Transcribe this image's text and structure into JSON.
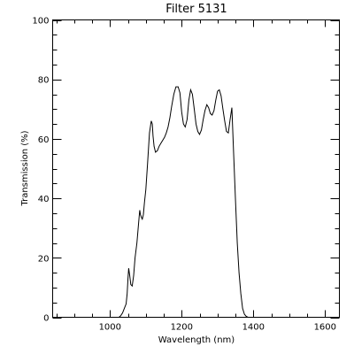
{
  "chart_data": {
    "type": "line",
    "title": "Filter 5131",
    "xlabel": "Wavelength (nm)",
    "ylabel": "Transmission (%)",
    "xlim": [
      840,
      1640
    ],
    "ylim": [
      0,
      100
    ],
    "xticks": [
      1000,
      1200,
      1400,
      1600
    ],
    "yticks": [
      0,
      20,
      40,
      60,
      80,
      100
    ],
    "xtick_labels": [
      "1000",
      "1200",
      "1400",
      "1600"
    ],
    "ytick_labels": [
      "0",
      "20",
      "40",
      "60",
      "80",
      "100"
    ],
    "grid": false,
    "line_color": "#000000",
    "series": [
      {
        "x": [
          1020,
          1025,
          1030,
          1035,
          1040,
          1045,
          1048,
          1050,
          1052,
          1055,
          1058,
          1062,
          1066,
          1070,
          1075,
          1080,
          1083,
          1085,
          1088,
          1090,
          1093,
          1096,
          1100,
          1105,
          1110,
          1115,
          1118,
          1120,
          1123,
          1127,
          1132,
          1137,
          1142,
          1147,
          1152,
          1157,
          1162,
          1167,
          1172,
          1178,
          1184,
          1190,
          1195,
          1200,
          1205,
          1210,
          1215,
          1220,
          1225,
          1230,
          1235,
          1240,
          1245,
          1250,
          1255,
          1260,
          1265,
          1270,
          1275,
          1280,
          1285,
          1290,
          1295,
          1300,
          1305,
          1310,
          1315,
          1320,
          1325,
          1330,
          1335,
          1340,
          1345,
          1350,
          1355,
          1360,
          1365,
          1370,
          1375,
          1380,
          1385,
          1390,
          1395,
          1400,
          1404,
          1407,
          1410,
          1413,
          1416,
          1419,
          1422,
          1426,
          1430,
          1435,
          1440,
          1445,
          1450,
          1455,
          1460,
          1465,
          1470
        ],
        "y": [
          0,
          0,
          0.5,
          1.5,
          3,
          4.5,
          8,
          13,
          16.5,
          14,
          11,
          10.5,
          14,
          20,
          25,
          32,
          36,
          34.5,
          33.5,
          33,
          34.5,
          38.5,
          43,
          52,
          62,
          66,
          65,
          61,
          57.5,
          55.5,
          56,
          57.5,
          58.5,
          59.5,
          60.5,
          62,
          64,
          67,
          71,
          75,
          77.5,
          77.5,
          75.5,
          69,
          65,
          64,
          66.5,
          73,
          76.5,
          75,
          70,
          65,
          62.5,
          61.5,
          63,
          66.5,
          69.5,
          71.5,
          70.5,
          68.5,
          68,
          69.5,
          73,
          76,
          76.5,
          74.5,
          70,
          66,
          62.5,
          62,
          66.5,
          70.5,
          55,
          40,
          25,
          15,
          8,
          3,
          1,
          0.3,
          0,
          0,
          0,
          0,
          0,
          0,
          0,
          0,
          0,
          0,
          0,
          0,
          0,
          0,
          0,
          0,
          0,
          0,
          0,
          0,
          0
        ]
      }
    ]
  }
}
